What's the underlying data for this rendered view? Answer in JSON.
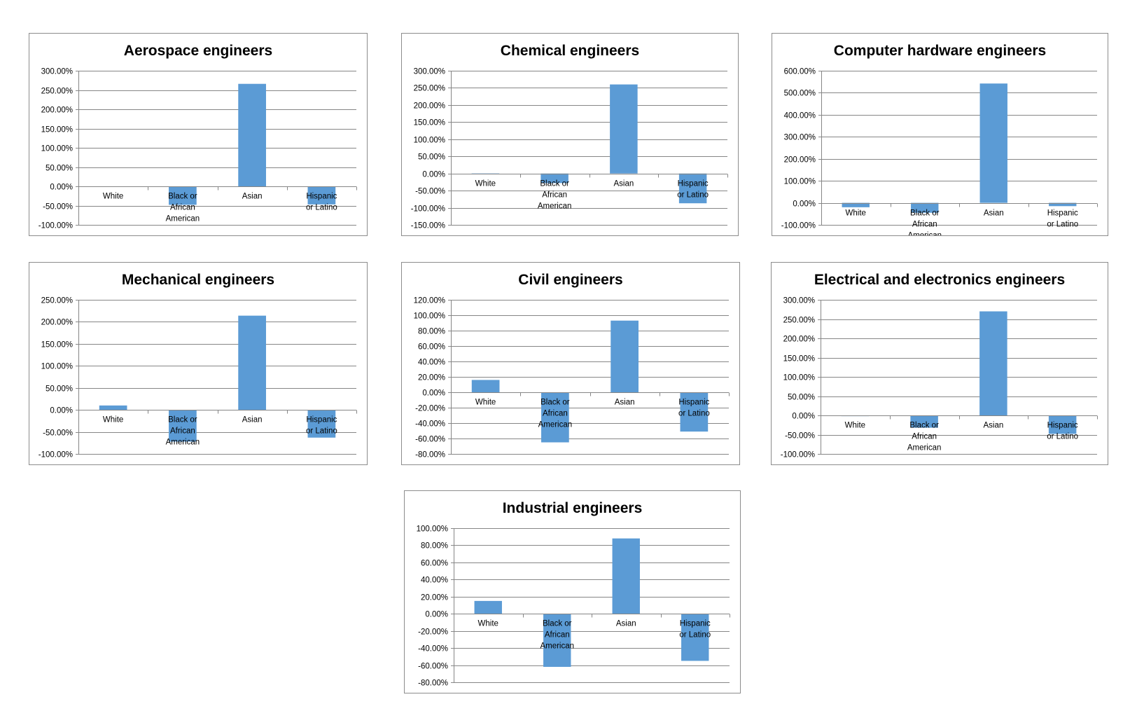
{
  "colors": {
    "bar": "#5b9bd5",
    "grid": "#868686",
    "border": "#8c8c8c"
  },
  "chart_data": [
    {
      "type": "bar",
      "title": "Aerospace engineers",
      "categories": [
        [
          "White"
        ],
        [
          "Black or",
          "African",
          "American"
        ],
        [
          "Asian"
        ],
        [
          "Hispanic",
          "or Latino"
        ]
      ],
      "values": [
        -1.0,
        -48.0,
        266.0,
        -47.0
      ],
      "ylim": [
        -100,
        300
      ],
      "step": 50,
      "ytick_labels": [
        "300.00%",
        "250.00%",
        "200.00%",
        "150.00%",
        "100.00%",
        "50.00%",
        "0.00%",
        "-50.00%",
        "-100.00%"
      ],
      "xlabel": "",
      "ylabel": ""
    },
    {
      "type": "bar",
      "title": "Chemical engineers",
      "categories": [
        [
          "White"
        ],
        [
          "Black or",
          "African",
          "American"
        ],
        [
          "Asian"
        ],
        [
          "Hispanic",
          "or Latino"
        ]
      ],
      "values": [
        0.0,
        -28.0,
        260.0,
        -87.0
      ],
      "ylim": [
        -150,
        300
      ],
      "step": 50,
      "ytick_labels": [
        "300.00%",
        "250.00%",
        "200.00%",
        "150.00%",
        "100.00%",
        "50.00%",
        "0.00%",
        "-50.00%",
        "-100.00%",
        "-150.00%"
      ],
      "xlabel": "",
      "ylabel": ""
    },
    {
      "type": "bar",
      "title": "Computer hardware engineers",
      "categories": [
        [
          "White"
        ],
        [
          "Black or",
          "African",
          "American"
        ],
        [
          "Asian"
        ],
        [
          "Hispanic",
          "or Latino"
        ]
      ],
      "values": [
        -20.0,
        -45.0,
        542.0,
        -15.0
      ],
      "ylim": [
        -100,
        600
      ],
      "step": 100,
      "ytick_labels": [
        "600.00%",
        "500.00%",
        "400.00%",
        "300.00%",
        "200.00%",
        "100.00%",
        "0.00%",
        "-100.00%"
      ],
      "xlabel": "",
      "ylabel": ""
    },
    {
      "type": "bar",
      "title": "Mechanical engineers",
      "categories": [
        [
          "White"
        ],
        [
          "Black or",
          "African",
          "American"
        ],
        [
          "Asian"
        ],
        [
          "Hispanic",
          "or Latino"
        ]
      ],
      "values": [
        10.0,
        -72.0,
        214.0,
        -63.0
      ],
      "ylim": [
        -100,
        250
      ],
      "step": 50,
      "ytick_labels": [
        "250.00%",
        "200.00%",
        "150.00%",
        "100.00%",
        "50.00%",
        "0.00%",
        "-50.00%",
        "-100.00%"
      ],
      "xlabel": "",
      "ylabel": ""
    },
    {
      "type": "bar",
      "title": "Civil engineers",
      "categories": [
        [
          "White"
        ],
        [
          "Black or",
          "African",
          "American"
        ],
        [
          "Asian"
        ],
        [
          "Hispanic",
          "or Latino"
        ]
      ],
      "values": [
        16.0,
        -65.0,
        93.0,
        -51.0
      ],
      "ylim": [
        -80,
        120
      ],
      "step": 20,
      "ytick_labels": [
        "120.00%",
        "100.00%",
        "80.00%",
        "60.00%",
        "40.00%",
        "20.00%",
        "0.00%",
        "-20.00%",
        "-40.00%",
        "-60.00%",
        "-80.00%"
      ],
      "xlabel": "",
      "ylabel": ""
    },
    {
      "type": "bar",
      "title": "Electrical and electronics engineers",
      "categories": [
        [
          "White"
        ],
        [
          "Black or",
          "African",
          "American"
        ],
        [
          "Asian"
        ],
        [
          "Hispanic",
          "or Latino"
        ]
      ],
      "values": [
        -2.0,
        -32.0,
        270.0,
        -48.0
      ],
      "ylim": [
        -100,
        300
      ],
      "step": 50,
      "ytick_labels": [
        "300.00%",
        "250.00%",
        "200.00%",
        "150.00%",
        "100.00%",
        "50.00%",
        "0.00%",
        "-50.00%",
        "-100.00%"
      ],
      "xlabel": "",
      "ylabel": ""
    },
    {
      "type": "bar",
      "title": "Industrial engineers",
      "categories": [
        [
          "White"
        ],
        [
          "Black or",
          "African",
          "American"
        ],
        [
          "Asian"
        ],
        [
          "Hispanic",
          "or Latino"
        ]
      ],
      "values": [
        15.0,
        -62.0,
        88.0,
        -55.0
      ],
      "ylim": [
        -80,
        100
      ],
      "step": 20,
      "ytick_labels": [
        "100.00%",
        "80.00%",
        "60.00%",
        "40.00%",
        "20.00%",
        "0.00%",
        "-20.00%",
        "-40.00%",
        "-60.00%",
        "-80.00%"
      ],
      "xlabel": "",
      "ylabel": ""
    }
  ]
}
